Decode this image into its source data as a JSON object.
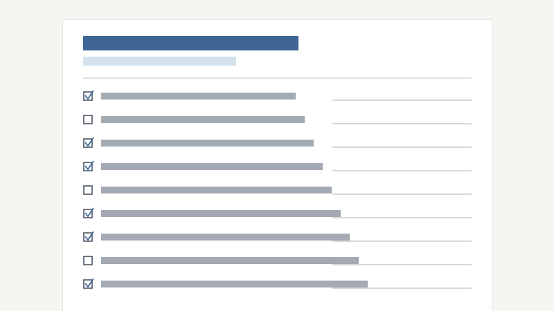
{
  "checklist": {
    "items": [
      {
        "checked": true
      },
      {
        "checked": false
      },
      {
        "checked": true
      },
      {
        "checked": true
      },
      {
        "checked": false
      },
      {
        "checked": true
      },
      {
        "checked": true
      },
      {
        "checked": false
      },
      {
        "checked": true
      }
    ]
  }
}
